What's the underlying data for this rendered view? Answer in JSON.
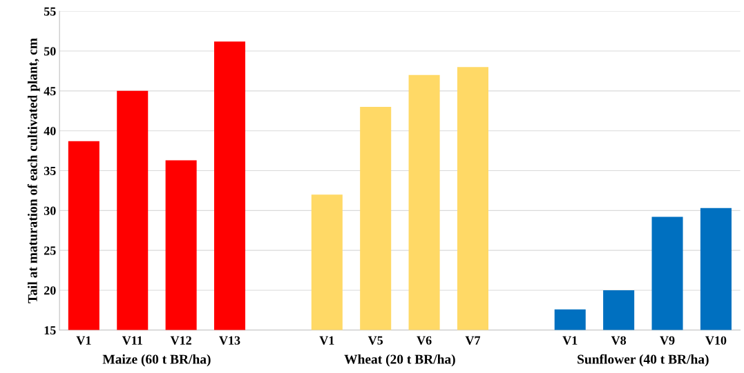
{
  "chart_data": {
    "type": "bar",
    "ylabel": "Tail at maturation of each cultivated plant, cm",
    "categories": [
      "V1",
      "V11",
      "V12",
      "V13",
      null,
      "V1",
      "V5",
      "V6",
      "V7",
      null,
      "V1",
      "V8",
      "V9",
      "V10"
    ],
    "values": [
      38.7,
      45,
      36.3,
      51.2,
      null,
      32,
      43,
      47,
      48,
      null,
      17.6,
      20,
      29.2,
      30.3
    ],
    "colors": [
      "#ff0000",
      "#ff0000",
      "#ff0000",
      "#ff0000",
      "#ffffff",
      "#ffd966",
      "#ffd966",
      "#ffd966",
      "#ffd966",
      "#ffffff",
      "#0070c0",
      "#0070c0",
      "#0070c0",
      "#0070c0"
    ],
    "ylim": [
      15,
      55
    ],
    "yticks": [
      15,
      20,
      25,
      30,
      35,
      40,
      45,
      50,
      55
    ],
    "grid": "y",
    "legend": false,
    "annotations": [
      "Maize (60 t BR/ha)",
      "Wheat (20 t BR/ha)",
      "Sunflower (40 t BR/ha)"
    ]
  }
}
